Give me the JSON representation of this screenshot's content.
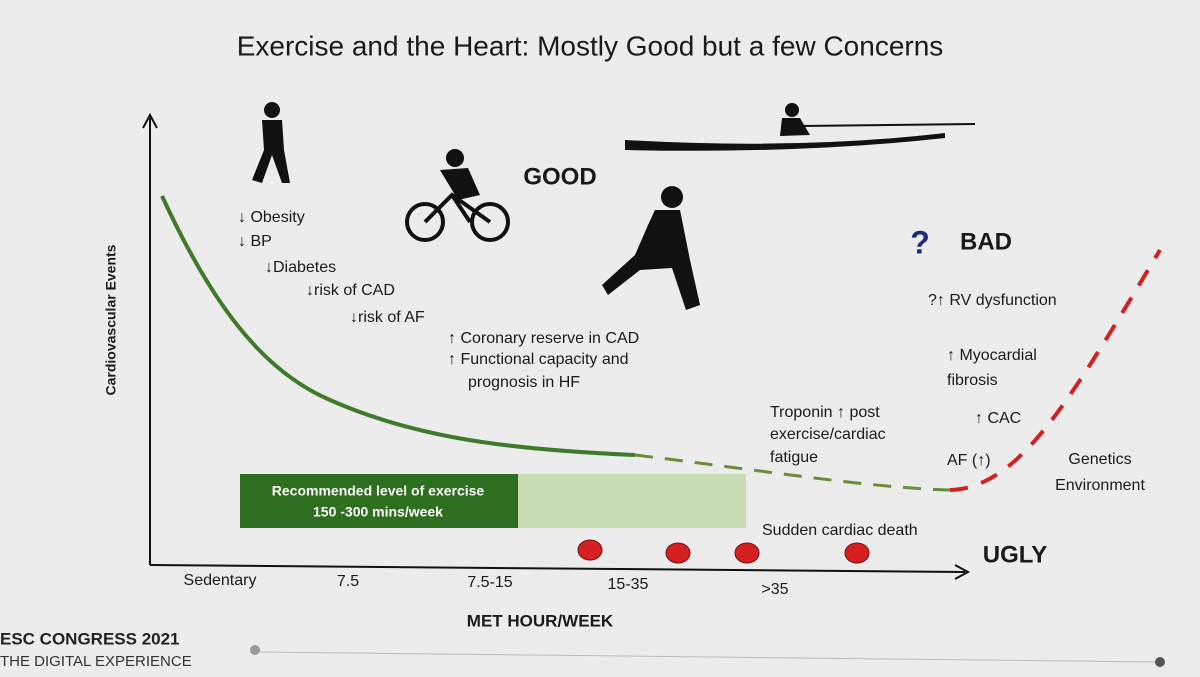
{
  "title": "Exercise and the Heart: Mostly Good but a few Concerns",
  "axes": {
    "y_label": "Cardiovascular Events",
    "x_label": "MET HOUR/WEEK",
    "x_categories": [
      "Sedentary",
      "7.5",
      "7.5-15",
      "15-35",
      ">35"
    ]
  },
  "zones": {
    "good": "GOOD",
    "bad_question": "?",
    "bad": "BAD",
    "ugly": "UGLY"
  },
  "good_effects": [
    "↓ Obesity",
    "↓ BP",
    "↓Diabetes",
    "↓risk of CAD",
    "↓risk of AF"
  ],
  "benefits": [
    "↑ Coronary reserve in CAD",
    "↑ Functional capacity and",
    "prognosis in HF"
  ],
  "troponin": [
    "Troponin ↑ post",
    "exercise/cardiac",
    "fatigue"
  ],
  "bad_effects": [
    "?↑ RV dysfunction",
    "↑ Myocardial",
    "fibrosis",
    "↑ CAC",
    "AF (↑)"
  ],
  "factors": [
    "Genetics",
    "Environment"
  ],
  "recommended": [
    "Recommended level of exercise",
    "150 -300 mins/week"
  ],
  "sudden_death": "Sudden cardiac death",
  "footer": {
    "line1": "ESC CONGRESS 2021",
    "line2": "THE DIGITAL EXPERIENCE"
  }
}
